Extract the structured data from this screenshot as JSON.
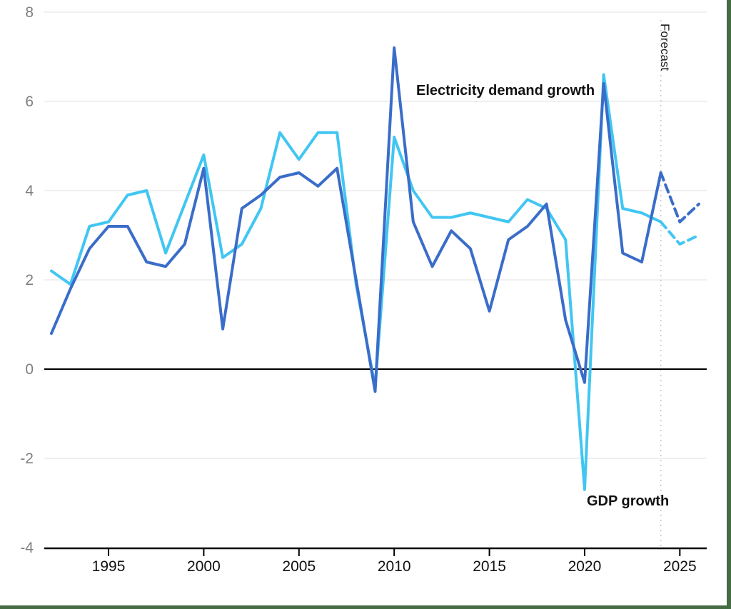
{
  "frame": {
    "border_color": "#466c46"
  },
  "chart_data": {
    "type": "line",
    "title": "",
    "xlabel": "",
    "ylabel": "",
    "x_years": [
      1992,
      1993,
      1994,
      1995,
      1996,
      1997,
      1998,
      1999,
      2000,
      2001,
      2002,
      2003,
      2004,
      2005,
      2006,
      2007,
      2008,
      2009,
      2010,
      2011,
      2012,
      2013,
      2014,
      2015,
      2016,
      2017,
      2018,
      2019,
      2020,
      2021,
      2022,
      2023,
      2024,
      2025,
      2026
    ],
    "series": [
      {
        "name": "GDP growth",
        "color": "#41c6f2",
        "forecast_style": "dashed",
        "values": [
          2.2,
          1.9,
          3.2,
          3.3,
          3.9,
          4.0,
          2.6,
          3.7,
          4.8,
          2.5,
          2.8,
          3.6,
          5.3,
          4.7,
          5.3,
          5.3,
          1.9,
          -0.4,
          5.2,
          4.0,
          3.4,
          3.4,
          3.5,
          3.4,
          3.3,
          3.8,
          3.6,
          2.9,
          -2.7,
          6.6,
          3.6,
          3.5,
          3.3,
          2.8,
          3.0
        ]
      },
      {
        "name": "Electricity demand growth",
        "color": "#3a6dc9",
        "forecast_style": "dashed",
        "values": [
          0.8,
          1.8,
          2.7,
          3.2,
          3.2,
          2.4,
          2.3,
          2.8,
          4.5,
          0.9,
          3.6,
          3.9,
          4.3,
          4.4,
          4.1,
          4.5,
          2.0,
          -0.5,
          7.2,
          3.3,
          2.3,
          3.1,
          2.7,
          1.3,
          2.9,
          3.2,
          3.7,
          1.1,
          -0.3,
          6.4,
          2.6,
          2.4,
          4.4,
          3.3,
          3.7
        ]
      }
    ],
    "forecast_start_year": 2024,
    "forecast_label": "Forecast",
    "xticks": [
      1995,
      2000,
      2005,
      2010,
      2015,
      2020,
      2025
    ],
    "yticks": [
      8,
      6,
      4,
      2,
      0,
      -2,
      -4
    ],
    "xlim": [
      1992,
      2026
    ],
    "ylim": [
      -4,
      8
    ],
    "grid": true,
    "legend_position": "inline-annotations",
    "axis_colors": {
      "grid": "#ececec",
      "zero_line": "#000000",
      "axis": "#000000",
      "y_tick_label": "#7f7f7f",
      "x_tick_label": "#111111",
      "forecast_line": "#c9c9c9"
    }
  }
}
